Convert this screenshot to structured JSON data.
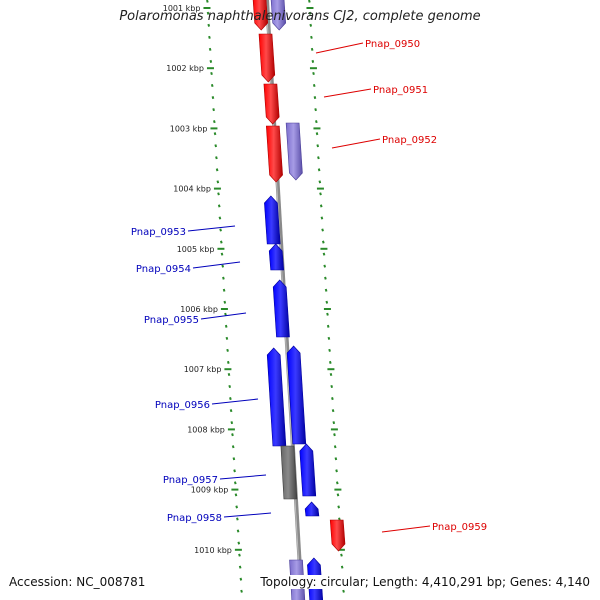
{
  "header": {
    "title": "Polaromonas naphthalenivorans CJ2, complete genome"
  },
  "footer": {
    "accession": "Accession: NC_008781",
    "info": "Topology: circular; Length: 4,410,291 bp; Genes: 4,140"
  },
  "colors": {
    "forward_gene": "#ff0000",
    "reverse_gene": "#0000ff",
    "forward_other": "#8877cc",
    "reverse_other": "#666666",
    "tick": "#2a8a2a",
    "backbone": "#888888"
  },
  "ticks": [
    {
      "label": "1001 kbp"
    },
    {
      "label": "1002 kbp"
    },
    {
      "label": "1003 kbp"
    },
    {
      "label": "1004 kbp"
    },
    {
      "label": "1005 kbp"
    },
    {
      "label": "1006 kbp"
    },
    {
      "label": "1007 kbp"
    },
    {
      "label": "1008 kbp"
    },
    {
      "label": "1009 kbp"
    },
    {
      "label": "1010 kbp"
    }
  ],
  "gene_labels": [
    {
      "text": "Pnap_0950",
      "strand": "forward"
    },
    {
      "text": "Pnap_0951",
      "strand": "forward"
    },
    {
      "text": "Pnap_0952",
      "strand": "forward"
    },
    {
      "text": "Pnap_0953",
      "strand": "reverse"
    },
    {
      "text": "Pnap_0954",
      "strand": "reverse"
    },
    {
      "text": "Pnap_0955",
      "strand": "reverse"
    },
    {
      "text": "Pnap_0956",
      "strand": "reverse"
    },
    {
      "text": "Pnap_0957",
      "strand": "reverse"
    },
    {
      "text": "Pnap_0958",
      "strand": "reverse"
    },
    {
      "text": "Pnap_0959",
      "strand": "forward"
    }
  ]
}
